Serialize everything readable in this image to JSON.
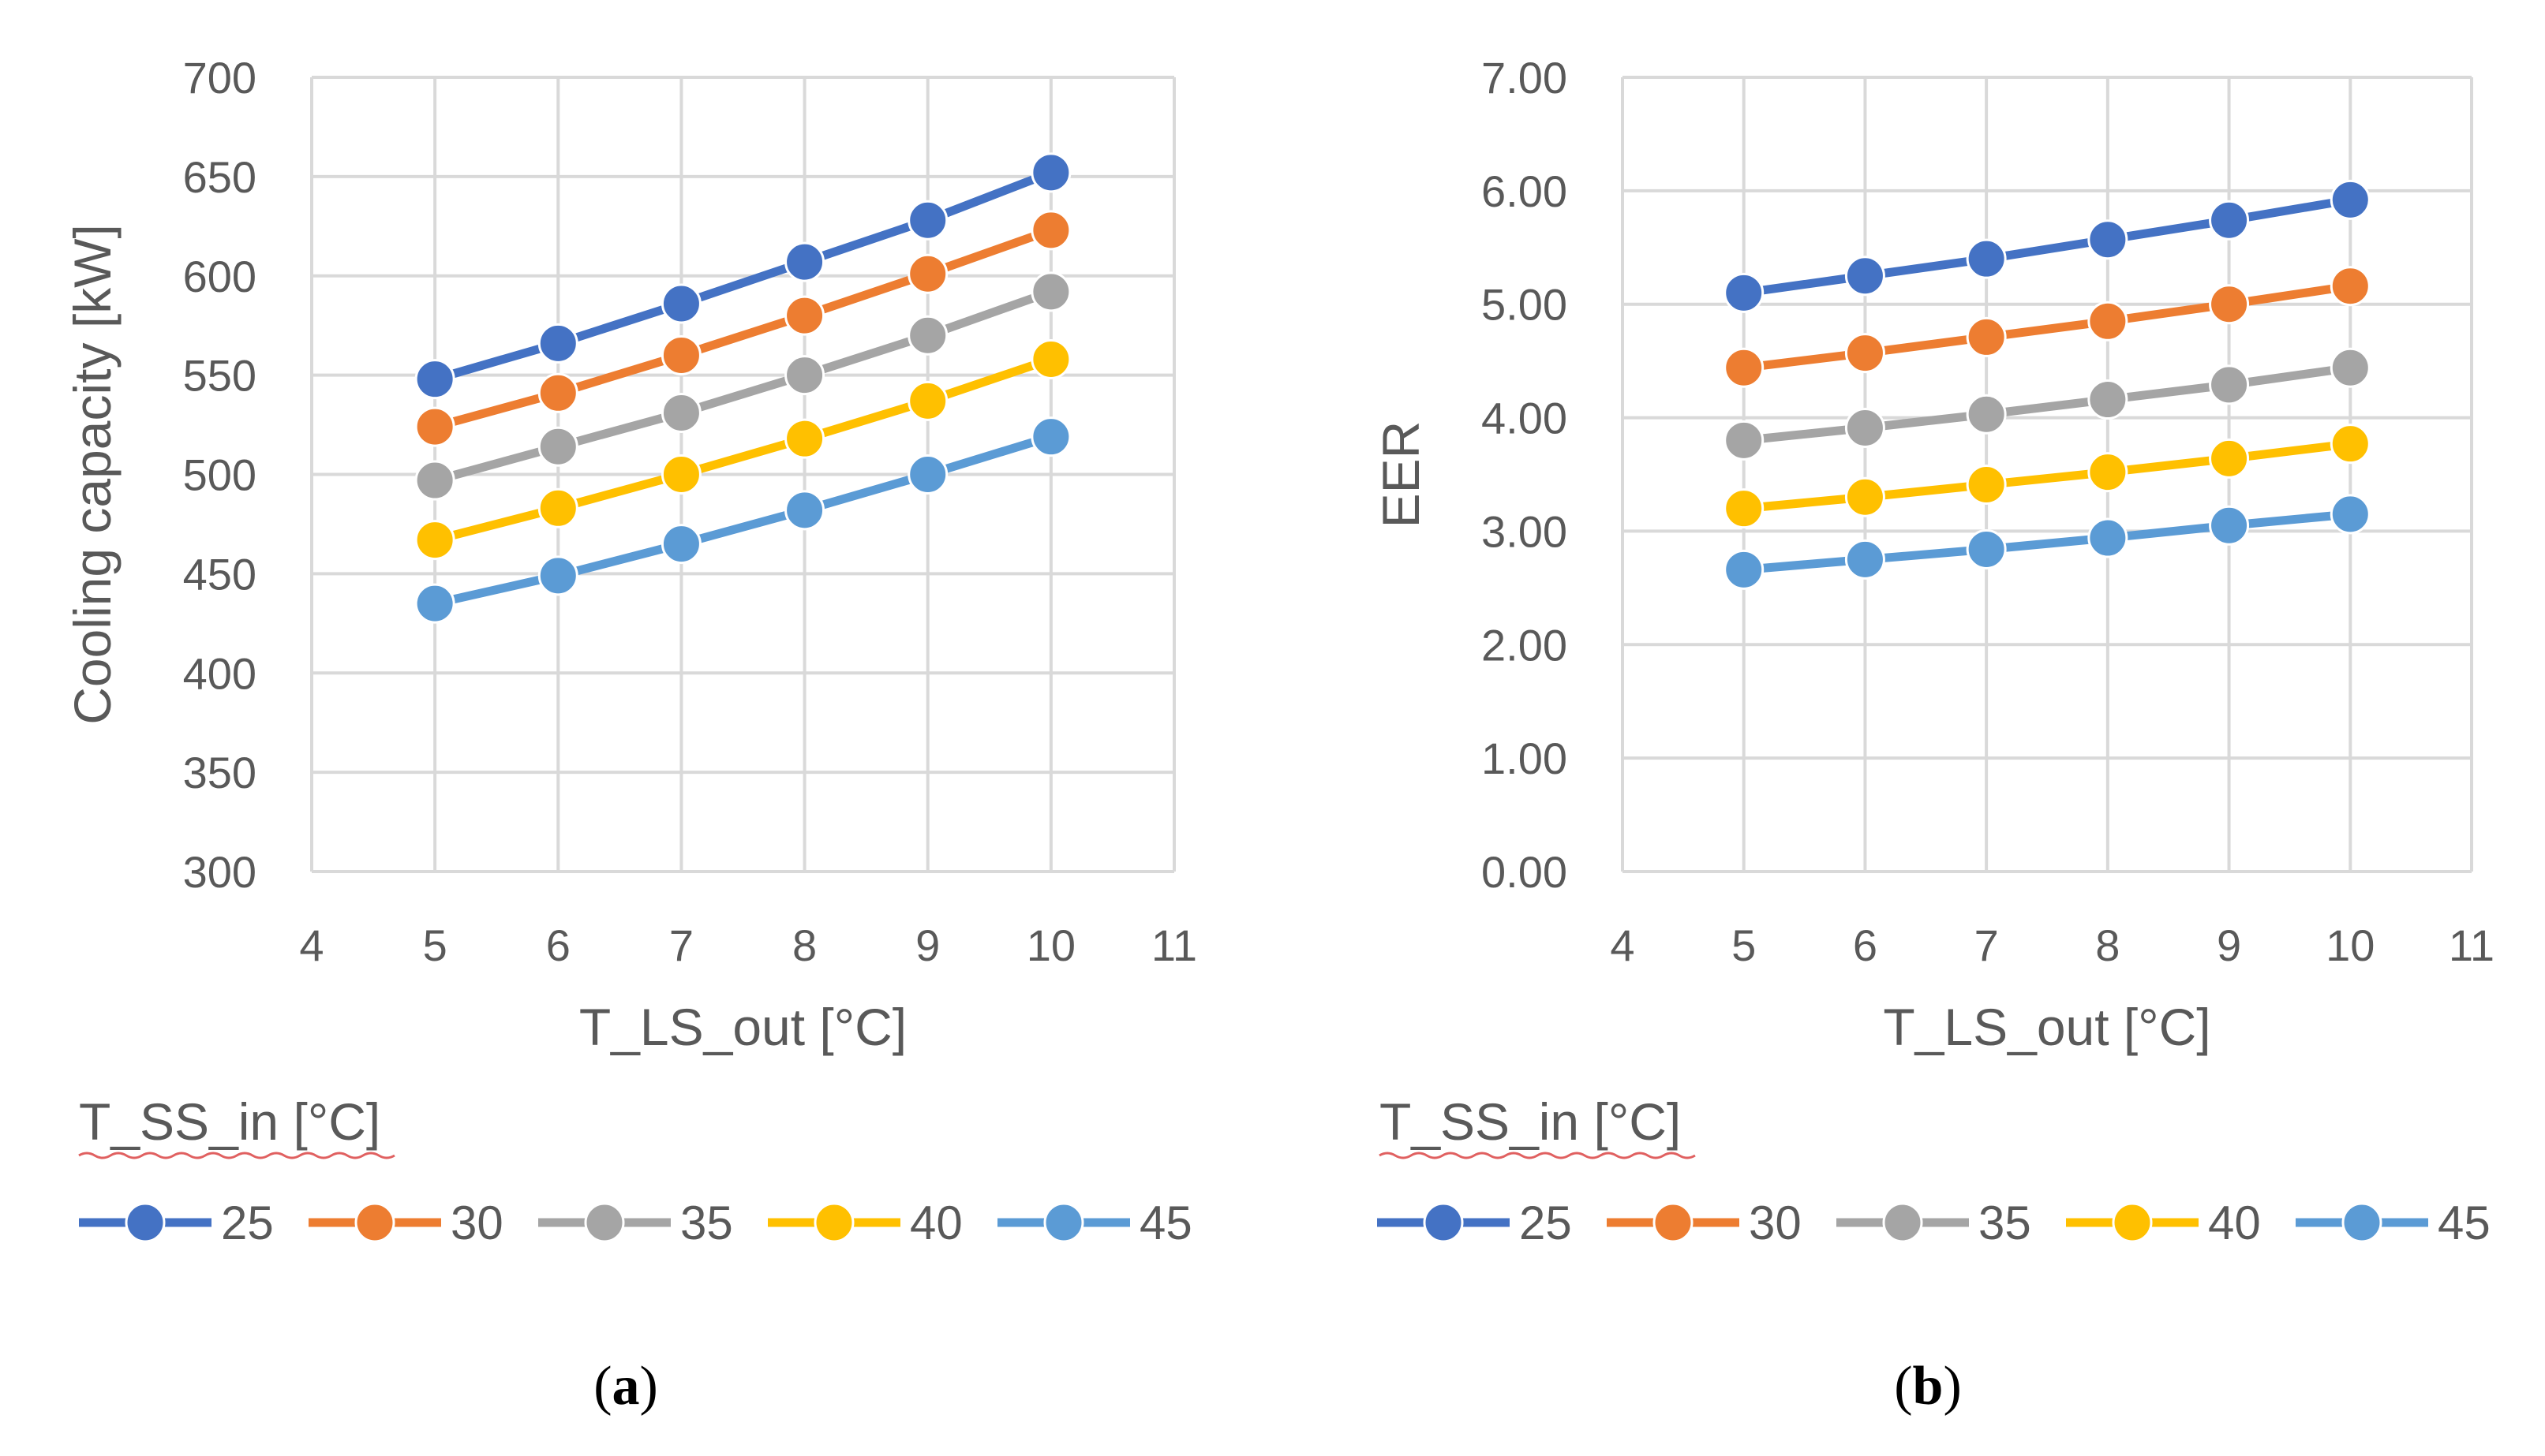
{
  "chart_data": [
    {
      "type": "line",
      "panel_label": "a",
      "xlabel": "T_LS_out [°C]",
      "ylabel": "Cooling capacity [kW]",
      "xlim": [
        4,
        11
      ],
      "ylim": [
        300,
        700
      ],
      "x_ticks": [
        4,
        5,
        6,
        7,
        8,
        9,
        10,
        11
      ],
      "y_ticks": [
        300,
        350,
        400,
        450,
        500,
        550,
        600,
        650,
        700
      ],
      "y_decimals": 0,
      "legend_title": "T_SS_in [°C]",
      "legend_position": "bottom",
      "x": [
        5,
        6,
        7,
        8,
        9,
        10
      ],
      "series": [
        {
          "name": "25",
          "color": "#4472C4",
          "values": [
            548,
            566,
            586,
            607,
            628,
            652
          ]
        },
        {
          "name": "30",
          "color": "#ED7D31",
          "values": [
            524,
            541,
            560,
            580,
            601,
            623
          ]
        },
        {
          "name": "35",
          "color": "#A5A5A5",
          "values": [
            497,
            514,
            531,
            550,
            570,
            592
          ]
        },
        {
          "name": "40",
          "color": "#FFC000",
          "values": [
            467,
            483,
            500,
            518,
            537,
            558
          ]
        },
        {
          "name": "45",
          "color": "#5B9BD5",
          "values": [
            435,
            449,
            465,
            482,
            500,
            519
          ]
        }
      ]
    },
    {
      "type": "line",
      "panel_label": "b",
      "xlabel": "T_LS_out [°C]",
      "ylabel": "EER",
      "xlim": [
        4,
        11
      ],
      "ylim": [
        0,
        7
      ],
      "x_ticks": [
        4,
        5,
        6,
        7,
        8,
        9,
        10,
        11
      ],
      "y_ticks": [
        0,
        1,
        2,
        3,
        4,
        5,
        6,
        7
      ],
      "y_decimals": 2,
      "legend_title": "T_SS_in [°C]",
      "legend_position": "bottom",
      "x": [
        5,
        6,
        7,
        8,
        9,
        10
      ],
      "series": [
        {
          "name": "25",
          "color": "#4472C4",
          "values": [
            5.1,
            5.25,
            5.4,
            5.57,
            5.74,
            5.92
          ]
        },
        {
          "name": "30",
          "color": "#ED7D31",
          "values": [
            4.44,
            4.57,
            4.71,
            4.85,
            5.0,
            5.16
          ]
        },
        {
          "name": "35",
          "color": "#A5A5A5",
          "values": [
            3.8,
            3.91,
            4.03,
            4.16,
            4.29,
            4.44
          ]
        },
        {
          "name": "40",
          "color": "#FFC000",
          "values": [
            3.2,
            3.3,
            3.41,
            3.52,
            3.64,
            3.77
          ]
        },
        {
          "name": "45",
          "color": "#5B9BD5",
          "values": [
            2.66,
            2.75,
            2.84,
            2.94,
            3.05,
            3.15
          ]
        }
      ]
    }
  ]
}
